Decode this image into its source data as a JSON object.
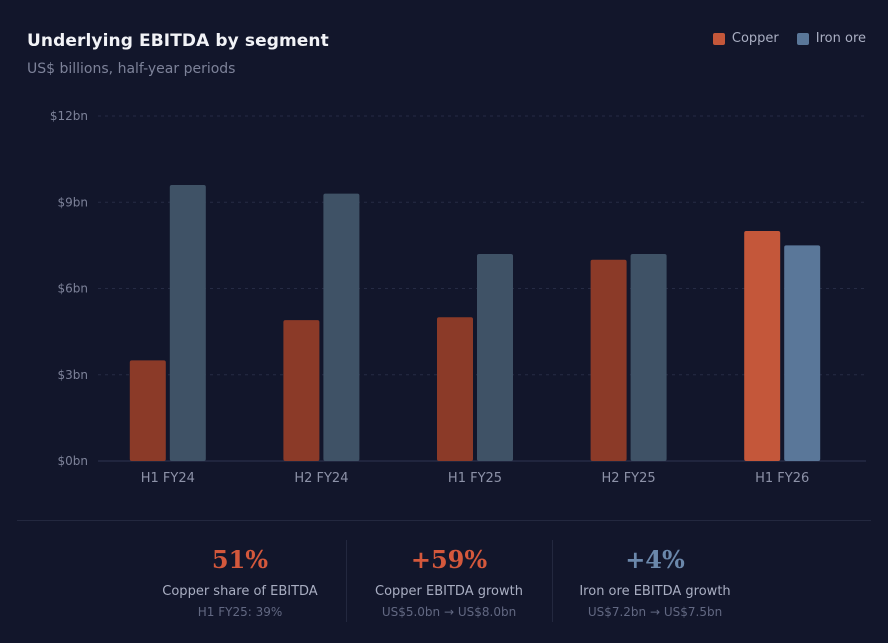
{
  "chart_data": {
    "type": "bar",
    "title": "Underlying EBITDA by segment",
    "subtitle": "US$ billions, half-year periods",
    "categories": [
      "H1 FY24",
      "H2 FY24",
      "H1 FY25",
      "H2 FY25",
      "H1 FY26"
    ],
    "series": [
      {
        "name": "Copper",
        "values": [
          3.5,
          4.9,
          5.0,
          7.0,
          8.0
        ]
      },
      {
        "name": "Iron ore",
        "values": [
          9.6,
          9.3,
          7.2,
          7.2,
          7.5
        ]
      }
    ],
    "ylim": [
      0,
      12
    ],
    "yticks": [
      0,
      3,
      6,
      9,
      12
    ],
    "ytick_labels": [
      "$0bn",
      "$3bn",
      "$6bn",
      "$9bn",
      "$12bn"
    ],
    "xlabel": "",
    "ylabel": "",
    "grid": true,
    "legend_position": "top-right",
    "colors": {
      "copper": "#8b3a28",
      "copper_highlight": "#c4573a",
      "iron": "#3f5266",
      "iron_highlight": "#5a7799"
    }
  },
  "stats": [
    {
      "value": "51%",
      "label": "Copper share of EBITDA",
      "detail": "H1 FY25: 39%",
      "color": "#d4583c"
    },
    {
      "value": "+59%",
      "label": "Copper EBITDA growth",
      "detail": "US$5.0bn → US$8.0bn",
      "color": "#d4583c"
    },
    {
      "value": "+4%",
      "label": "Iron ore EBITDA growth",
      "detail": "US$7.2bn → US$7.5bn",
      "color": "#6b88ab"
    }
  ]
}
